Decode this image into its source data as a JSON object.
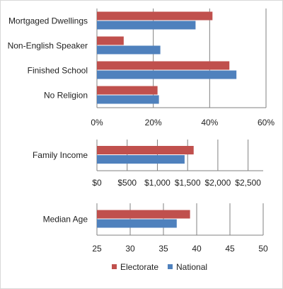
{
  "colors": {
    "electorate": "#c0504d",
    "national": "#4f81bd",
    "grid": "#808080",
    "axis": "#808080"
  },
  "chart_data": [
    {
      "type": "bar",
      "orientation": "horizontal",
      "categories": [
        "Mortgaged Dwellings",
        "Non-English Speaker",
        "Finished School",
        "No Religion"
      ],
      "series": [
        {
          "name": "Electorate",
          "values": [
            41,
            9.5,
            47,
            21.5
          ]
        },
        {
          "name": "National",
          "values": [
            35,
            22.5,
            49.5,
            22
          ]
        }
      ],
      "xlim": [
        0,
        60
      ],
      "xticks": [
        "0%",
        "20%",
        "40%",
        "60%"
      ],
      "grid": true
    },
    {
      "type": "bar",
      "orientation": "horizontal",
      "categories": [
        "Family Income"
      ],
      "series": [
        {
          "name": "Electorate",
          "values": [
            1600
          ]
        },
        {
          "name": "National",
          "values": [
            1450
          ]
        }
      ],
      "xlim": [
        0,
        2750
      ],
      "xticks": [
        "$0",
        "$500",
        "$1,000",
        "$1,500",
        "$2,000",
        "$2,500"
      ],
      "grid": true
    },
    {
      "type": "bar",
      "orientation": "horizontal",
      "categories": [
        "Median Age"
      ],
      "series": [
        {
          "name": "Electorate",
          "values": [
            39
          ]
        },
        {
          "name": "National",
          "values": [
            37
          ]
        }
      ],
      "xlim": [
        25,
        50
      ],
      "xticks": [
        "25",
        "30",
        "35",
        "40",
        "45",
        "50"
      ],
      "grid": true
    }
  ],
  "legend": {
    "position": "bottom",
    "items": [
      "Electorate",
      "National"
    ]
  }
}
